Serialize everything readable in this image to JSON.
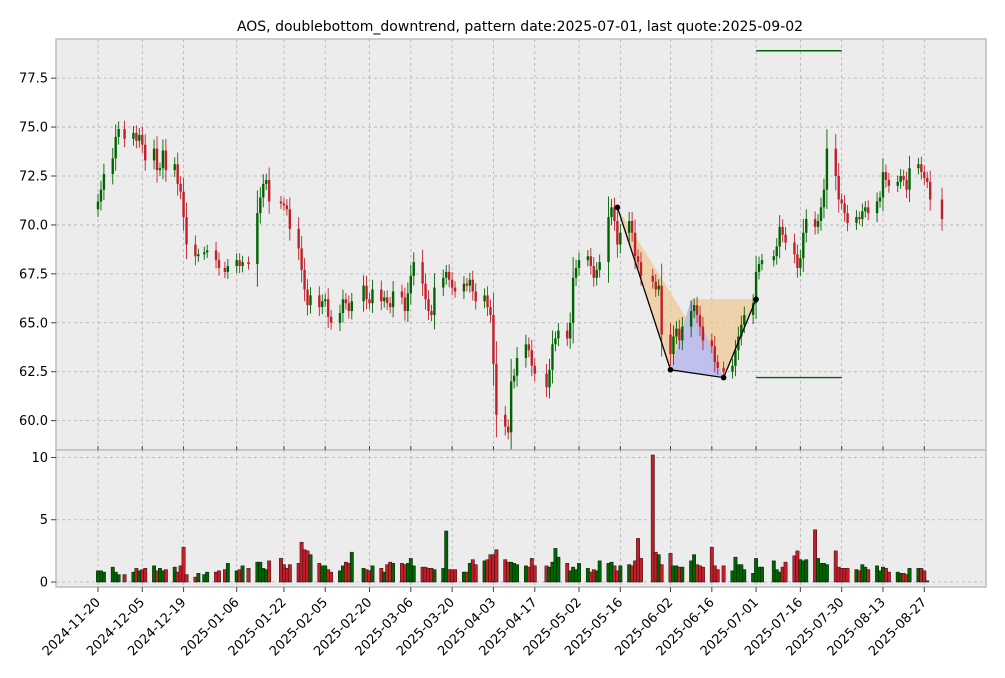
{
  "chart_data": [
    {
      "type": "candlestick",
      "title": "AOS, doublebottom_downtrend, pattern date:2025-07-01, last quote:2025-09-02",
      "ylim": [
        58.5,
        79.5
      ],
      "y_ticks": [
        "60.0",
        "62.5",
        "65.0",
        "67.5",
        "70.0",
        "72.5",
        "75.0",
        "77.5"
      ],
      "grid": true,
      "colors": {
        "up": "#006400",
        "down": "#c0202a",
        "hline": "#006400",
        "background": "#ececec"
      },
      "ohlc_daily_path": [
        [
          "2024-11-20",
          71.2
        ],
        [
          "2024-11-21",
          71.8
        ],
        [
          "2024-11-22",
          72.6
        ],
        [
          "2024-11-25",
          73.4
        ],
        [
          "2024-11-26",
          74.5
        ],
        [
          "2024-11-27",
          74.9
        ],
        [
          "2024-11-29",
          74.4
        ],
        [
          "2024-12-02",
          74.7
        ],
        [
          "2024-12-03",
          74.3
        ],
        [
          "2024-12-04",
          74.6
        ],
        [
          "2024-12-05",
          74.1
        ],
        [
          "2024-12-06",
          73.3
        ],
        [
          "2024-12-09",
          73.9
        ],
        [
          "2024-12-10",
          72.8
        ],
        [
          "2024-12-11",
          72.9
        ],
        [
          "2024-12-12",
          73.8
        ],
        [
          "2024-12-13",
          72.8
        ],
        [
          "2024-12-16",
          73.1
        ],
        [
          "2024-12-17",
          72.1
        ],
        [
          "2024-12-18",
          71.7
        ],
        [
          "2024-12-19",
          70.4
        ],
        [
          "2024-12-20",
          69.0
        ],
        [
          "2024-12-23",
          68.4
        ],
        [
          "2024-12-24",
          68.5
        ],
        [
          "2024-12-26",
          68.6
        ],
        [
          "2024-12-27",
          68.7
        ],
        [
          "2024-12-30",
          68.2
        ],
        [
          "2024-12-31",
          67.8
        ],
        [
          "2025-01-02",
          67.6
        ],
        [
          "2025-01-03",
          67.9
        ],
        [
          "2025-01-06",
          68.2
        ],
        [
          "2025-01-07",
          67.9
        ],
        [
          "2025-01-08",
          68.1
        ],
        [
          "2025-01-10",
          68.0
        ],
        [
          "2025-01-13",
          70.6
        ],
        [
          "2025-01-14",
          71.4
        ],
        [
          "2025-01-15",
          72.1
        ],
        [
          "2025-01-16",
          72.3
        ],
        [
          "2025-01-17",
          71.2
        ],
        [
          "2025-01-21",
          71.1
        ],
        [
          "2025-01-22",
          71.0
        ],
        [
          "2025-01-23",
          70.8
        ],
        [
          "2025-01-24",
          69.8
        ],
        [
          "2025-01-27",
          68.8
        ],
        [
          "2025-01-28",
          67.7
        ],
        [
          "2025-01-29",
          66.7
        ],
        [
          "2025-01-30",
          65.9
        ],
        [
          "2025-01-31",
          66.4
        ],
        [
          "2025-02-03",
          65.8
        ],
        [
          "2025-02-04",
          66.1
        ],
        [
          "2025-02-05",
          66.2
        ],
        [
          "2025-02-06",
          65.3
        ],
        [
          "2025-02-07",
          65.0
        ],
        [
          "2025-02-10",
          65.5
        ],
        [
          "2025-02-11",
          66.2
        ],
        [
          "2025-02-12",
          66.0
        ],
        [
          "2025-02-13",
          65.6
        ],
        [
          "2025-02-14",
          66.1
        ],
        [
          "2025-02-18",
          66.9
        ],
        [
          "2025-02-19",
          66.2
        ],
        [
          "2025-02-20",
          66.0
        ],
        [
          "2025-02-21",
          66.7
        ],
        [
          "2025-02-24",
          66.1
        ],
        [
          "2025-02-25",
          66.3
        ],
        [
          "2025-02-26",
          66.0
        ],
        [
          "2025-02-27",
          65.8
        ],
        [
          "2025-02-28",
          66.6
        ],
        [
          "2025-03-03",
          66.3
        ],
        [
          "2025-03-04",
          65.6
        ],
        [
          "2025-03-05",
          66.5
        ],
        [
          "2025-03-06",
          67.4
        ],
        [
          "2025-03-07",
          68.1
        ],
        [
          "2025-03-10",
          67.0
        ],
        [
          "2025-03-11",
          66.2
        ],
        [
          "2025-03-12",
          65.6
        ],
        [
          "2025-03-13",
          65.4
        ],
        [
          "2025-03-14",
          66.8
        ],
        [
          "2025-03-17",
          67.3
        ],
        [
          "2025-03-18",
          67.6
        ],
        [
          "2025-03-19",
          67.2
        ],
        [
          "2025-03-20",
          66.8
        ],
        [
          "2025-03-21",
          66.6
        ],
        [
          "2025-03-24",
          67.0
        ],
        [
          "2025-03-25",
          66.9
        ],
        [
          "2025-03-26",
          67.2
        ],
        [
          "2025-03-27",
          66.6
        ],
        [
          "2025-03-28",
          66.1
        ],
        [
          "2025-03-31",
          66.4
        ],
        [
          "2025-04-01",
          65.8
        ],
        [
          "2025-04-02",
          65.4
        ],
        [
          "2025-04-03",
          62.9
        ],
        [
          "2025-04-04",
          60.3
        ],
        [
          "2025-04-07",
          59.7
        ],
        [
          "2025-04-08",
          59.4
        ],
        [
          "2025-04-09",
          62.0
        ],
        [
          "2025-04-10",
          62.3
        ],
        [
          "2025-04-11",
          63.2
        ],
        [
          "2025-04-14",
          63.9
        ],
        [
          "2025-04-15",
          63.6
        ],
        [
          "2025-04-16",
          62.8
        ],
        [
          "2025-04-17",
          62.4
        ],
        [
          "2025-04-21",
          61.7
        ],
        [
          "2025-04-22",
          62.6
        ],
        [
          "2025-04-23",
          63.9
        ],
        [
          "2025-04-24",
          64.2
        ],
        [
          "2025-04-25",
          64.6
        ],
        [
          "2025-04-28",
          64.2
        ],
        [
          "2025-04-29",
          65.0
        ],
        [
          "2025-04-30",
          67.3
        ],
        [
          "2025-05-01",
          67.8
        ],
        [
          "2025-05-02",
          68.2
        ],
        [
          "2025-05-05",
          68.4
        ],
        [
          "2025-05-06",
          67.9
        ],
        [
          "2025-05-07",
          67.3
        ],
        [
          "2025-05-08",
          67.7
        ],
        [
          "2025-05-09",
          68.1
        ],
        [
          "2025-05-12",
          70.4
        ],
        [
          "2025-05-13",
          70.9
        ],
        [
          "2025-05-14",
          70.2
        ],
        [
          "2025-05-15",
          69.0
        ],
        [
          "2025-05-16",
          69.6
        ],
        [
          "2025-05-19",
          70.2
        ],
        [
          "2025-05-20",
          69.6
        ],
        [
          "2025-05-21",
          68.4
        ],
        [
          "2025-05-22",
          68.1
        ],
        [
          "2025-05-23",
          67.4
        ],
        [
          "2025-05-27",
          67.1
        ],
        [
          "2025-05-28",
          66.7
        ],
        [
          "2025-05-29",
          66.9
        ],
        [
          "2025-05-30",
          64.4
        ],
        [
          "2025-06-02",
          63.4
        ],
        [
          "2025-06-03",
          64.3
        ],
        [
          "2025-06-04",
          64.7
        ],
        [
          "2025-06-05",
          64.1
        ],
        [
          "2025-06-06",
          64.8
        ],
        [
          "2025-06-09",
          65.6
        ],
        [
          "2025-06-10",
          65.9
        ],
        [
          "2025-06-11",
          65.4
        ],
        [
          "2025-06-12",
          64.8
        ],
        [
          "2025-06-13",
          64.1
        ],
        [
          "2025-06-16",
          63.8
        ],
        [
          "2025-06-17",
          63.0
        ],
        [
          "2025-06-18",
          62.7
        ],
        [
          "2025-06-20",
          62.5
        ],
        [
          "2025-06-23",
          62.8
        ],
        [
          "2025-06-24",
          63.6
        ],
        [
          "2025-06-25",
          64.3
        ],
        [
          "2025-06-26",
          64.9
        ],
        [
          "2025-06-27",
          65.4
        ],
        [
          "2025-06-30",
          66.0
        ],
        [
          "2025-07-01",
          67.6
        ],
        [
          "2025-07-02",
          68.0
        ],
        [
          "2025-07-03",
          68.2
        ],
        [
          "2025-07-07",
          68.4
        ],
        [
          "2025-07-08",
          68.9
        ],
        [
          "2025-07-09",
          69.9
        ],
        [
          "2025-07-10",
          69.5
        ],
        [
          "2025-07-11",
          69.1
        ],
        [
          "2025-07-14",
          68.5
        ],
        [
          "2025-07-15",
          67.8
        ],
        [
          "2025-07-16",
          68.3
        ],
        [
          "2025-07-17",
          69.6
        ],
        [
          "2025-07-18",
          70.3
        ],
        [
          "2025-07-21",
          69.9
        ],
        [
          "2025-07-22",
          70.2
        ],
        [
          "2025-07-23",
          70.9
        ],
        [
          "2025-07-24",
          71.8
        ],
        [
          "2025-07-25",
          73.9
        ],
        [
          "2025-07-28",
          72.5
        ],
        [
          "2025-07-29",
          71.3
        ],
        [
          "2025-07-30",
          71.1
        ],
        [
          "2025-07-31",
          70.6
        ],
        [
          "2025-08-01",
          70.1
        ],
        [
          "2025-08-04",
          70.4
        ],
        [
          "2025-08-05",
          70.3
        ],
        [
          "2025-08-06",
          70.7
        ],
        [
          "2025-08-07",
          70.9
        ],
        [
          "2025-08-08",
          70.6
        ],
        [
          "2025-08-11",
          71.2
        ],
        [
          "2025-08-12",
          71.4
        ],
        [
          "2025-08-13",
          72.7
        ],
        [
          "2025-08-14",
          72.3
        ],
        [
          "2025-08-15",
          72.0
        ],
        [
          "2025-08-18",
          72.2
        ],
        [
          "2025-08-19",
          72.5
        ],
        [
          "2025-08-20",
          72.3
        ],
        [
          "2025-08-21",
          71.8
        ],
        [
          "2025-08-22",
          72.9
        ],
        [
          "2025-08-25",
          73.1
        ],
        [
          "2025-08-26",
          72.7
        ],
        [
          "2025-08-27",
          72.4
        ],
        [
          "2025-08-28",
          72.2
        ],
        [
          "2025-08-29",
          71.3
        ],
        [
          "2025-09-02",
          70.3
        ]
      ],
      "pattern_points": [
        {
          "date": "2025-05-15",
          "value": 70.9
        },
        {
          "date": "2025-06-02",
          "value": 62.6
        },
        {
          "date": "2025-06-20",
          "value": 62.2
        },
        {
          "date": "2025-07-01",
          "value": 66.2
        }
      ],
      "pattern_peak": {
        "date": "2025-06-09",
        "value": 66.2
      },
      "horizontal_lines": [
        {
          "value": 78.9,
          "from": "2025-07-01",
          "to": "2025-07-30"
        },
        {
          "value": 62.2,
          "from": "2025-07-01",
          "to": "2025-07-30"
        }
      ]
    },
    {
      "type": "bar",
      "ylim": [
        -0.4,
        10.6
      ],
      "y_ticks": [
        "0",
        "5",
        "10"
      ],
      "grid": true,
      "volume_series": [
        0.9,
        0.9,
        0.8,
        1.2,
        0.8,
        0.6,
        0.6,
        0.8,
        1.1,
        0.9,
        1.0,
        1.1,
        1.3,
        0.9,
        1.1,
        0.9,
        1.0,
        1.2,
        0.8,
        1.3,
        2.8,
        0.6,
        0.4,
        0.7,
        0.6,
        0.8,
        0.8,
        0.9,
        1.0,
        1.5,
        0.9,
        1.0,
        1.3,
        1.1,
        1.6,
        1.6,
        1.1,
        1.0,
        1.7,
        1.9,
        1.4,
        1.1,
        1.4,
        1.5,
        3.2,
        2.6,
        2.5,
        2.2,
        1.5,
        1.3,
        1.3,
        1.0,
        0.8,
        0.9,
        1.3,
        1.6,
        1.5,
        2.4,
        1.1,
        1.0,
        0.9,
        1.3,
        1.1,
        0.8,
        1.4,
        1.6,
        1.5,
        1.5,
        1.4,
        1.5,
        1.9,
        1.3,
        1.2,
        1.2,
        1.1,
        1.1,
        1.0,
        1.1,
        4.1,
        1.0,
        1.0,
        1.0,
        0.8,
        0.8,
        1.5,
        1.8,
        1.4,
        1.7,
        1.8,
        2.2,
        2.2,
        2.6,
        1.8,
        1.6,
        1.6,
        1.5,
        1.4,
        1.3,
        1.2,
        1.9,
        1.3,
        1.3,
        1.2,
        1.6,
        2.7,
        2.0,
        1.5,
        0.9,
        1.2,
        1.0,
        1.5,
        1.1,
        0.8,
        1.0,
        0.9,
        1.7,
        1.5,
        1.6,
        1.3,
        0.9,
        1.3,
        1.4,
        1.3,
        1.7,
        3.5,
        1.9,
        10.2,
        2.4,
        2.2,
        1.4,
        2.3,
        1.3,
        1.3,
        1.2,
        1.2,
        1.7,
        2.2,
        1.4,
        1.3,
        1.2,
        2.8,
        1.3,
        1.0,
        1.3,
        0.9,
        2.0,
        1.4,
        1.4,
        1.0,
        0.7,
        1.9,
        1.2,
        1.2,
        1.7,
        1.0,
        0.8,
        1.2,
        1.6,
        2.1,
        2.5,
        1.8,
        1.7,
        1.8,
        4.2,
        1.9,
        1.5,
        1.5,
        1.4,
        2.5,
        1.2,
        1.1,
        1.1,
        1.1,
        1.0,
        0.9,
        1.4,
        1.2,
        1.0,
        1.3,
        0.9,
        1.2,
        1.1,
        0.8,
        0.8,
        0.7,
        0.7,
        0.6,
        1.1,
        1.1,
        1.1,
        0.9,
        0.1
      ]
    }
  ],
  "x_ticks": [
    {
      "label": "2024-11-20",
      "date": "2024-11-20"
    },
    {
      "label": "2024-12-05",
      "date": "2024-12-05"
    },
    {
      "label": "2024-12-19",
      "date": "2024-12-19"
    },
    {
      "label": "2025-01-06",
      "date": "2025-01-06"
    },
    {
      "label": "2025-01-22",
      "date": "2025-01-22"
    },
    {
      "label": "2025-02-05",
      "date": "2025-02-05"
    },
    {
      "label": "2025-02-20",
      "date": "2025-02-20"
    },
    {
      "label": "2025-03-06",
      "date": "2025-03-06"
    },
    {
      "label": "2025-03-20",
      "date": "2025-03-20"
    },
    {
      "label": "2025-04-03",
      "date": "2025-04-03"
    },
    {
      "label": "2025-04-17",
      "date": "2025-04-17"
    },
    {
      "label": "2025-05-02",
      "date": "2025-05-02"
    },
    {
      "label": "2025-05-16",
      "date": "2025-05-16"
    },
    {
      "label": "2025-06-02",
      "date": "2025-06-02"
    },
    {
      "label": "2025-06-16",
      "date": "2025-06-16"
    },
    {
      "label": "2025-07-01",
      "date": "2025-07-01"
    },
    {
      "label": "2025-07-16",
      "date": "2025-07-16"
    },
    {
      "label": "2025-07-30",
      "date": "2025-07-30"
    },
    {
      "label": "2025-08-13",
      "date": "2025-08-13"
    },
    {
      "label": "2025-08-27",
      "date": "2025-08-27"
    }
  ]
}
